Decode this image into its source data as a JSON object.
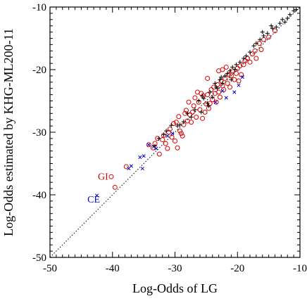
{
  "chart_data": {
    "type": "scatter",
    "xlabel": "Log-Odds of LG",
    "ylabel": "Log-Odds estimated by KHG-ML200-11",
    "xlim": [
      -50,
      -10
    ],
    "ylim": [
      -50,
      -10
    ],
    "x_ticks": [
      -50,
      -40,
      -30,
      -20,
      -10
    ],
    "y_ticks": [
      -50,
      -40,
      -30,
      -20,
      -10
    ],
    "grid": false,
    "diagonal_reference": true,
    "annotations": [
      {
        "text": "GI",
        "x": -41.5,
        "y": -37.0,
        "color": "#cc0000"
      },
      {
        "text": "CE",
        "x": -43.0,
        "y": -40.7,
        "color": "#0000cc"
      }
    ],
    "series": [
      {
        "marker": "circle",
        "color": "#dd0000",
        "points": [
          [
            -40.2,
            -37.1
          ],
          [
            -39.6,
            -38.8
          ],
          [
            -37.8,
            -35.5
          ],
          [
            -34.2,
            -32.0
          ],
          [
            -33.5,
            -32.5
          ],
          [
            -33.2,
            -31.8
          ],
          [
            -32.5,
            -33.5
          ],
          [
            -32.0,
            -31.2
          ],
          [
            -31.8,
            -30.5
          ],
          [
            -31.5,
            -31.8
          ],
          [
            -31.2,
            -32.6
          ],
          [
            -30.8,
            -29.5
          ],
          [
            -30.5,
            -30.8
          ],
          [
            -30.2,
            -28.6
          ],
          [
            -30.0,
            -31.4
          ],
          [
            -29.6,
            -32.5
          ],
          [
            -29.4,
            -27.5
          ],
          [
            -29.2,
            -29.8
          ],
          [
            -29.0,
            -30.2
          ],
          [
            -28.6,
            -28.8
          ],
          [
            -28.4,
            -27.0
          ],
          [
            -28.2,
            -26.5
          ],
          [
            -28.0,
            -28.2
          ],
          [
            -27.6,
            -27.2
          ],
          [
            -27.2,
            -26.8
          ],
          [
            -27.0,
            -25.8
          ],
          [
            -26.8,
            -24.5
          ],
          [
            -26.6,
            -27.6
          ],
          [
            -26.2,
            -25.2
          ],
          [
            -26.0,
            -26.4
          ],
          [
            -25.8,
            -23.8
          ],
          [
            -25.5,
            -24.2
          ],
          [
            -25.2,
            -26.8
          ],
          [
            -25.0,
            -25.5
          ],
          [
            -24.8,
            -24.0
          ],
          [
            -24.6,
            -26.2
          ],
          [
            -24.4,
            -25.4
          ],
          [
            -24.2,
            -23.2
          ],
          [
            -24.0,
            -24.8
          ],
          [
            -23.8,
            -22.8
          ],
          [
            -23.6,
            -23.8
          ],
          [
            -23.4,
            -25.2
          ],
          [
            -23.2,
            -22.4
          ],
          [
            -23.0,
            -23.6
          ],
          [
            -22.8,
            -24.4
          ],
          [
            -22.6,
            -21.8
          ],
          [
            -22.4,
            -22.6
          ],
          [
            -22.2,
            -23.2
          ],
          [
            -22.0,
            -21.4
          ],
          [
            -21.6,
            -22.2
          ],
          [
            -21.4,
            -20.8
          ],
          [
            -21.2,
            -22.8
          ],
          [
            -21.0,
            -21.0
          ],
          [
            -20.8,
            -20.2
          ],
          [
            -20.5,
            -21.6
          ],
          [
            -20.2,
            -20.6
          ],
          [
            -20.0,
            -19.8
          ],
          [
            -19.6,
            -19.4
          ],
          [
            -19.4,
            -20.8
          ],
          [
            -19.0,
            -19.2
          ],
          [
            -18.8,
            -18.6
          ],
          [
            -18.4,
            -18.2
          ],
          [
            -18.0,
            -18.8
          ],
          [
            -17.6,
            -17.5
          ],
          [
            -17.2,
            -17.0
          ],
          [
            -16.5,
            -15.8
          ],
          [
            -16.2,
            -16.8
          ],
          [
            -15.8,
            -15.2
          ],
          [
            -15.0,
            -14.8
          ],
          [
            -14.0,
            -13.8
          ],
          [
            -27.8,
            -25.2
          ],
          [
            -26.4,
            -23.6
          ],
          [
            -25.6,
            -27.8
          ],
          [
            -31.0,
            -30.0
          ],
          [
            -29.8,
            -28.4
          ],
          [
            -32.8,
            -31.0
          ],
          [
            -24.8,
            -21.4
          ],
          [
            -23.0,
            -20.2
          ],
          [
            -21.8,
            -19.6
          ],
          [
            -28.8,
            -30.6
          ],
          [
            -27.4,
            -28.4
          ],
          [
            -22.4,
            -20.0
          ],
          [
            -19.8,
            -21.8
          ],
          [
            -17.0,
            -18.2
          ]
        ]
      },
      {
        "marker": "x",
        "color": "#0000cc",
        "points": [
          [
            -42.5,
            -40.1
          ],
          [
            -37.4,
            -35.8
          ],
          [
            -37.0,
            -35.4
          ],
          [
            -35.6,
            -34.0
          ],
          [
            -35.0,
            -33.8
          ],
          [
            -35.2,
            -35.8
          ],
          [
            -34.2,
            -32.0
          ],
          [
            -33.4,
            -32.3
          ],
          [
            -33.0,
            -32.6
          ],
          [
            -31.2,
            -30.6
          ],
          [
            -30.4,
            -30.2
          ],
          [
            -23.5,
            -25.2
          ],
          [
            -22.4,
            -23.4
          ],
          [
            -21.8,
            -24.5
          ],
          [
            -20.5,
            -23.6
          ],
          [
            -19.8,
            -22.5
          ],
          [
            -19.2,
            -21.2
          ]
        ]
      },
      {
        "marker": "plus",
        "color": "#000000",
        "points": [
          [
            -33.2,
            -32.2
          ],
          [
            -32.6,
            -31.0
          ],
          [
            -31.8,
            -30.4
          ],
          [
            -31.4,
            -29.8
          ],
          [
            -30.6,
            -28.9
          ],
          [
            -28.6,
            -28.3
          ],
          [
            -28.0,
            -27.0
          ],
          [
            -27.4,
            -27.6
          ],
          [
            -26.8,
            -26.4
          ],
          [
            -26.2,
            -25.0
          ],
          [
            -25.8,
            -26.8
          ],
          [
            -25.4,
            -24.6
          ],
          [
            -24.8,
            -25.4
          ],
          [
            -24.4,
            -23.6
          ],
          [
            -24.0,
            -24.4
          ],
          [
            -23.6,
            -22.2
          ],
          [
            -23.2,
            -23.0
          ],
          [
            -22.8,
            -21.6
          ],
          [
            -22.4,
            -22.2
          ],
          [
            -22.0,
            -21.0
          ],
          [
            -21.6,
            -20.6
          ],
          [
            -21.2,
            -20.2
          ],
          [
            -21.0,
            -21.6
          ],
          [
            -20.8,
            -19.6
          ],
          [
            -20.2,
            -19.2
          ],
          [
            -19.6,
            -18.8
          ],
          [
            -19.0,
            -18.2
          ],
          [
            -18.6,
            -17.8
          ],
          [
            -18.0,
            -17.2
          ],
          [
            -17.4,
            -16.2
          ],
          [
            -17.0,
            -15.8
          ],
          [
            -16.4,
            -15.2
          ],
          [
            -15.8,
            -14.6
          ],
          [
            -15.2,
            -14.2
          ],
          [
            -14.4,
            -13.4
          ],
          [
            -13.8,
            -13.2
          ],
          [
            -13.2,
            -12.6
          ],
          [
            -12.8,
            -12.0
          ],
          [
            -12.4,
            -12.4
          ],
          [
            -12.0,
            -11.8
          ],
          [
            -11.6,
            -11.2
          ],
          [
            -11.0,
            -10.6
          ],
          [
            -10.6,
            -10.4
          ],
          [
            -14.6,
            -13.0
          ],
          [
            -16.0,
            -14.0
          ],
          [
            -23.4,
            -22.8
          ],
          [
            -24.6,
            -25.8
          ],
          [
            -22.6,
            -21.2
          ],
          [
            -29.6,
            -29.0
          ],
          [
            -29.2,
            -28.8
          ],
          [
            -25.6,
            -24.2
          ],
          [
            -20.4,
            -20.0
          ]
        ]
      }
    ]
  }
}
